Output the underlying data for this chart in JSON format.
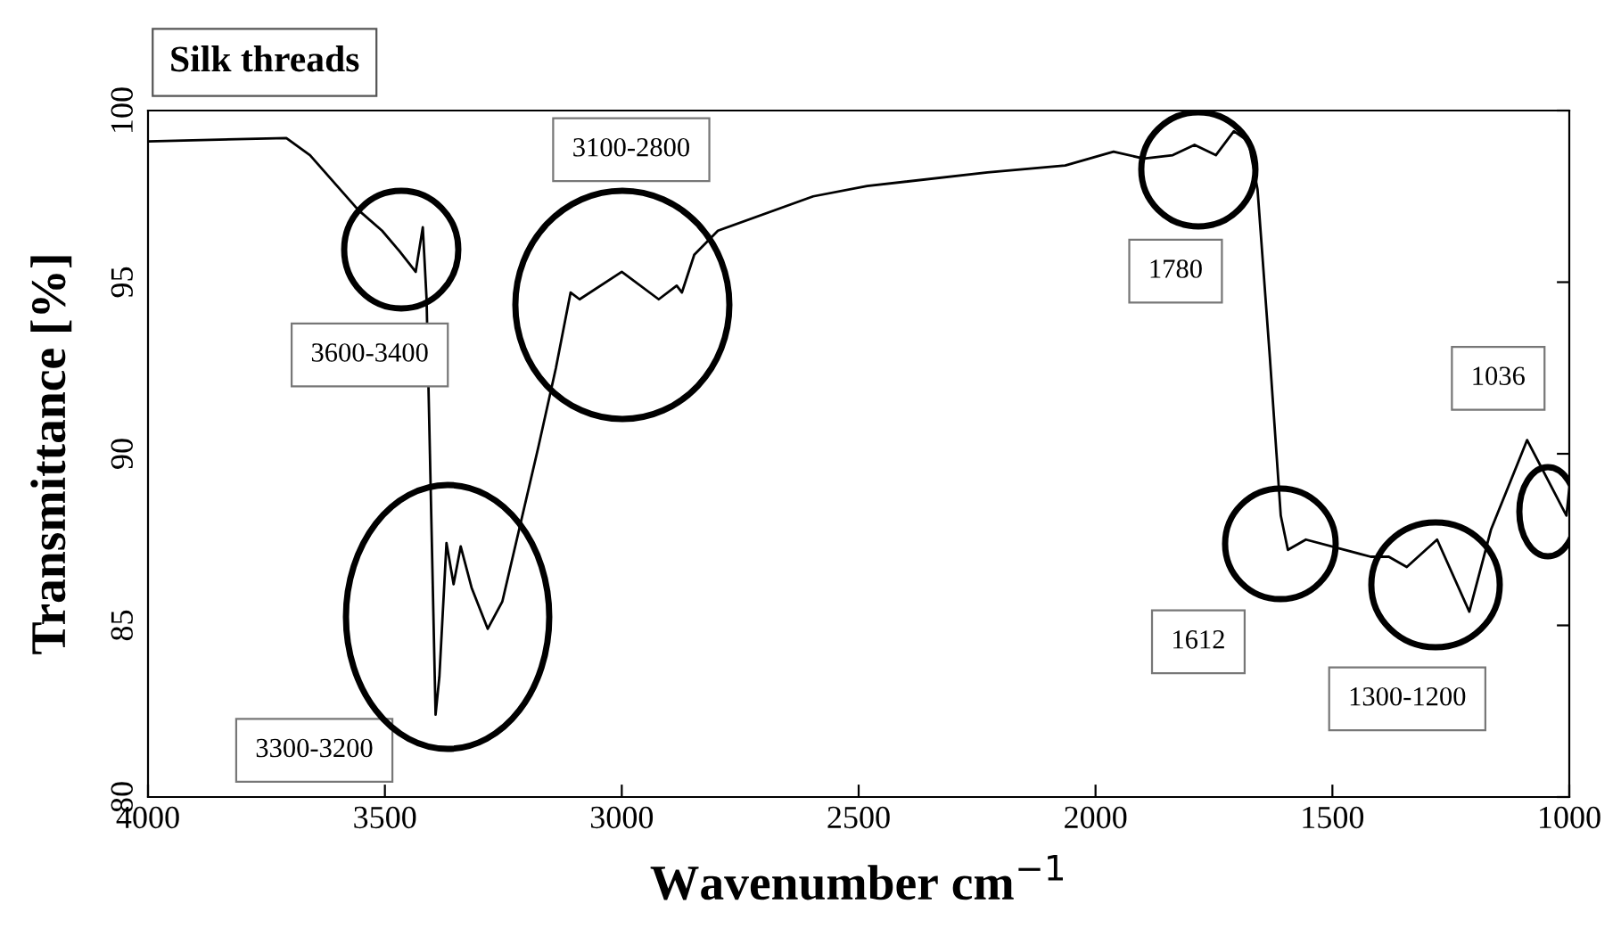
{
  "chart_data": {
    "type": "line",
    "title": "Silk threads",
    "xlabel": "Wavenumber cm$^{−1}$",
    "ylabel": "Transmittance [%]",
    "series": [
      {
        "color": "#000000",
        "x": [
          4000,
          3708,
          3658,
          3556,
          3506,
          3469,
          3435,
          3420,
          3412,
          3404,
          3393,
          3385,
          3370,
          3355,
          3340,
          3317,
          3283,
          3252,
          3176,
          3139,
          3108,
          3089,
          3000,
          2922,
          2884,
          2873,
          2847,
          2797,
          2596,
          2482,
          2228,
          2064,
          1962,
          1898,
          1837,
          1791,
          1746,
          1708,
          1677,
          1658,
          1632,
          1609,
          1594,
          1556,
          1419,
          1381,
          1343,
          1279,
          1211,
          1165,
          1089,
          1006,
          1000
        ],
        "values": [
          99.1,
          99.2,
          98.7,
          97.1,
          96.5,
          95.9,
          95.3,
          96.6,
          94.5,
          89.4,
          82.4,
          83.5,
          87.4,
          86.2,
          87.3,
          86.1,
          84.9,
          85.7,
          90.2,
          92.5,
          94.7,
          94.5,
          95.3,
          94.5,
          94.9,
          94.7,
          95.8,
          96.5,
          97.5,
          97.8,
          98.2,
          98.4,
          98.8,
          98.6,
          98.7,
          99.0,
          98.7,
          99.4,
          99.1,
          97.7,
          92.8,
          88.2,
          87.2,
          87.5,
          87.0,
          87.0,
          86.7,
          87.5,
          85.4,
          87.8,
          90.4,
          88.2,
          89.0
        ]
      }
    ],
    "xlim": [
      4000,
      1000
    ],
    "xticks": [
      4000,
      3500,
      3000,
      2500,
      2000,
      1500,
      1000
    ],
    "ylim": [
      80,
      100
    ],
    "yticks": [
      80,
      85,
      90,
      95,
      100
    ],
    "grid": false,
    "legend": false,
    "marker": "none",
    "line_style": "solid",
    "annotations": [
      "3600-3400",
      "3300-3200",
      "3100-2800",
      "1780",
      "1612",
      "1300-1200",
      "1036"
    ]
  }
}
